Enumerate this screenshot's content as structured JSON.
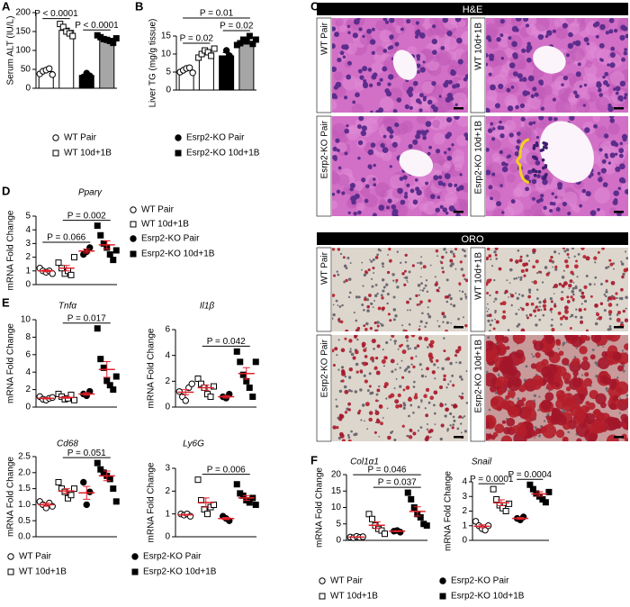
{
  "chart_data": [
    {
      "type": "bar",
      "panel": "A",
      "ylabel": "Serum ALT (IU/L)",
      "ylim": [
        0,
        200
      ],
      "yticks": [
        0,
        50,
        100,
        150,
        200
      ],
      "error_color": "#000000",
      "series": [
        {
          "name": "WT Pair",
          "marker": "circle",
          "filled": false,
          "bar_color": "#ffffff",
          "values": [
            38,
            45,
            48,
            52,
            36
          ],
          "mean": 44,
          "sem": 3
        },
        {
          "name": "WT 10d+1B",
          "marker": "square",
          "filled": false,
          "bar_color": "#ffffff",
          "values": [
            170,
            162,
            150,
            145,
            138
          ],
          "mean": 153,
          "sem": 6
        },
        {
          "name": "Esrp2-KO Pair",
          "marker": "circle",
          "filled": true,
          "bar_color": "#000000",
          "values": [
            30,
            40,
            33
          ],
          "mean": 34,
          "sem": 3
        },
        {
          "name": "Esrp2-KO 10d+1B",
          "marker": "square",
          "filled": true,
          "bar_color": "#a6a6a6",
          "values": [
            140,
            135,
            130,
            128,
            125,
            120,
            132
          ],
          "mean": 130,
          "sem": 3
        }
      ],
      "annotations": [
        {
          "label": "P < 0.0001",
          "between": [
            0,
            1
          ]
        },
        {
          "label": "P < 0.0001",
          "between": [
            2,
            3
          ]
        }
      ]
    },
    {
      "type": "bar",
      "panel": "B",
      "ylabel": "Liver TG (mg/g tissue)",
      "ylim": [
        0,
        15
      ],
      "yticks": [
        0,
        5,
        10,
        15
      ],
      "error_color": "#000000",
      "series": [
        {
          "name": "WT Pair",
          "marker": "circle",
          "filled": false,
          "bar_color": "#ffffff",
          "values": [
            5,
            5.5,
            6,
            6.2,
            4.8
          ],
          "mean": 5.5,
          "sem": 0.3
        },
        {
          "name": "WT 10d+1B",
          "marker": "square",
          "filled": false,
          "bar_color": "#ffffff",
          "values": [
            9,
            10,
            11,
            10.5,
            9.5,
            11.5
          ],
          "mean": 10.3,
          "sem": 0.4
        },
        {
          "name": "Esrp2-KO Pair",
          "marker": "circle",
          "filled": true,
          "bar_color": "#000000",
          "values": [
            8,
            11,
            9.5
          ],
          "mean": 9.5,
          "sem": 0.9
        },
        {
          "name": "Esrp2-KO 10d+1B",
          "marker": "square",
          "filled": true,
          "bar_color": "#a6a6a6",
          "values": [
            12.5,
            13,
            14,
            13.5,
            15,
            12.8,
            14
          ],
          "mean": 13.5,
          "sem": 0.4
        }
      ],
      "annotations": [
        {
          "label": "P = 0.02",
          "between": [
            0,
            1
          ]
        },
        {
          "label": "P = 0.02",
          "between": [
            2,
            3
          ]
        },
        {
          "label": "P = 0.01",
          "between": [
            0,
            3
          ]
        }
      ]
    },
    {
      "type": "dot",
      "panel": "D",
      "title": "Pparγ",
      "ylabel": "mRNA Fold Change",
      "ylim": [
        0,
        5
      ],
      "yticks": [
        0,
        1,
        2,
        3,
        4,
        5
      ],
      "mean_color": "#e0202a",
      "series": [
        {
          "name": "WT Pair",
          "marker": "circle",
          "filled": false,
          "values": [
            1.2,
            1.0,
            0.9,
            1.0,
            0.8
          ],
          "mean": 1.0,
          "sem": 0.07
        },
        {
          "name": "WT 10d+1B",
          "marker": "square",
          "filled": false,
          "values": [
            1.6,
            1.2,
            0.8,
            1.0,
            0.7,
            2.0
          ],
          "mean": 1.2,
          "sem": 0.2
        },
        {
          "name": "Esrp2-KO Pair",
          "marker": "circle",
          "filled": true,
          "values": [
            2.2,
            2.4,
            2.7
          ],
          "mean": 2.45,
          "sem": 0.15
        },
        {
          "name": "Esrp2-KO 10d+1B",
          "marker": "square",
          "filled": true,
          "values": [
            4.3,
            3.6,
            3.0,
            2.7,
            2.2,
            1.8,
            2.5
          ],
          "mean": 2.9,
          "sem": 0.3
        }
      ],
      "annotations": [
        {
          "label": "P = 0.066",
          "between": [
            0,
            2
          ]
        },
        {
          "label": "P = 0.002",
          "between": [
            1,
            3
          ]
        }
      ]
    },
    {
      "type": "dot",
      "panel": "E",
      "title": "Tnfα",
      "ylabel": "mRNA Fold Change",
      "ylim": [
        0,
        10
      ],
      "yticks": [
        0,
        2,
        4,
        6,
        8,
        10
      ],
      "mean_color": "#e0202a",
      "series": [
        {
          "name": "WT Pair",
          "marker": "circle",
          "filled": false,
          "values": [
            1.2,
            0.9,
            0.8,
            1.0,
            1.1
          ],
          "mean": 1.0,
          "sem": 0.07
        },
        {
          "name": "WT 10d+1B",
          "marker": "square",
          "filled": false,
          "values": [
            1.5,
            1.2,
            0.9,
            1.0,
            1.4,
            0.8
          ],
          "mean": 1.1,
          "sem": 0.1
        },
        {
          "name": "Esrp2-KO Pair",
          "marker": "circle",
          "filled": true,
          "values": [
            1.5,
            1.3,
            1.8
          ],
          "mean": 1.5,
          "sem": 0.15
        },
        {
          "name": "Esrp2-KO 10d+1B",
          "marker": "square",
          "filled": true,
          "values": [
            9.0,
            5.5,
            4.5,
            3.0,
            2.5,
            2.0,
            3.5
          ],
          "mean": 4.3,
          "sem": 0.9
        }
      ],
      "annotations": [
        {
          "label": "P = 0.017",
          "between": [
            1,
            3
          ]
        }
      ]
    },
    {
      "type": "dot",
      "title": "Il1β",
      "ylabel": "mRNA Fold Change",
      "ylim": [
        0,
        6
      ],
      "yticks": [
        0,
        2,
        4,
        6
      ],
      "mean_color": "#e0202a",
      "series": [
        {
          "name": "WT Pair",
          "marker": "circle",
          "filled": false,
          "values": [
            1.2,
            0.8,
            0.5,
            1.5,
            1.8
          ],
          "mean": 1.15,
          "sem": 0.2
        },
        {
          "name": "WT 10d+1B",
          "marker": "square",
          "filled": false,
          "values": [
            2.2,
            1.8,
            1.5,
            1.0,
            0.8,
            1.6
          ],
          "mean": 1.5,
          "sem": 0.2
        },
        {
          "name": "Esrp2-KO Pair",
          "marker": "circle",
          "filled": true,
          "values": [
            0.8,
            0.7,
            1.0
          ],
          "mean": 0.8,
          "sem": 0.1
        },
        {
          "name": "Esrp2-KO 10d+1B",
          "marker": "square",
          "filled": true,
          "values": [
            4.3,
            3.5,
            2.5,
            2.0,
            1.5,
            0.8,
            3.5
          ],
          "mean": 2.6,
          "sem": 0.45
        }
      ],
      "annotations": [
        {
          "label": "P = 0.042",
          "between": [
            1,
            3
          ]
        }
      ]
    },
    {
      "type": "dot",
      "title": "Cd68",
      "ylabel": "mRNA Fold Change",
      "ylim": [
        0,
        2.5
      ],
      "yticks": [
        {
          "value": 0,
          "label": "0.0"
        },
        0.5,
        {
          "value": 1,
          "label": "1.0"
        },
        1.5,
        {
          "value": 2,
          "label": "2.0"
        },
        2.5
      ],
      "mean_color": "#e0202a",
      "series": [
        {
          "name": "WT Pair",
          "marker": "circle",
          "filled": false,
          "values": [
            1.1,
            1.0,
            0.9,
            1.05,
            0.95
          ],
          "mean": 1.0,
          "sem": 0.05
        },
        {
          "name": "WT 10d+1B",
          "marker": "square",
          "filled": false,
          "values": [
            1.7,
            1.5,
            1.4,
            1.2,
            1.3,
            1.5
          ],
          "mean": 1.43,
          "sem": 0.07
        },
        {
          "name": "Esrp2-KO Pair",
          "marker": "circle",
          "filled": true,
          "values": [
            1.7,
            1.0,
            1.4
          ],
          "mean": 1.37,
          "sem": 0.2
        },
        {
          "name": "Esrp2-KO 10d+1B",
          "marker": "square",
          "filled": true,
          "values": [
            2.3,
            2.1,
            2.0,
            1.9,
            1.8,
            1.5,
            1.1
          ],
          "mean": 1.9,
          "sem": 0.15
        }
      ],
      "annotations": [
        {
          "label": "P = 0.051",
          "between": [
            1,
            3
          ]
        }
      ]
    },
    {
      "type": "dot",
      "title": "Ly6G",
      "ylabel": "mRNA Fold Change",
      "ylim": [
        0,
        3
      ],
      "yticks": [
        0,
        1,
        2,
        3
      ],
      "mean_color": "#e0202a",
      "series": [
        {
          "name": "WT Pair",
          "marker": "circle",
          "filled": false,
          "values": [
            1.0,
            0.95,
            1.0,
            0.9
          ],
          "mean": 0.96,
          "sem": 0.02
        },
        {
          "name": "WT 10d+1B",
          "marker": "square",
          "filled": false,
          "values": [
            2.5,
            1.6,
            1.2,
            1.0,
            1.3,
            1.4
          ],
          "mean": 1.5,
          "sem": 0.2
        },
        {
          "name": "Esrp2-KO Pair",
          "marker": "circle",
          "filled": true,
          "values": [
            0.9,
            0.8,
            0.7
          ],
          "mean": 0.8,
          "sem": 0.05
        },
        {
          "name": "Esrp2-KO 10d+1B",
          "marker": "square",
          "filled": true,
          "values": [
            2.3,
            1.9,
            1.8,
            1.6,
            1.5,
            1.7,
            1.4
          ],
          "mean": 1.7,
          "sem": 0.1
        }
      ],
      "annotations": [
        {
          "label": "P = 0.006",
          "between": [
            1,
            3
          ]
        }
      ]
    },
    {
      "type": "dot",
      "panel": "F",
      "title": "Col1α1",
      "ylabel": "mRNA Fold Change",
      "ylim": [
        0,
        20
      ],
      "yticks": [
        0,
        5,
        10,
        15,
        20
      ],
      "mean_color": "#e0202a",
      "series": [
        {
          "name": "WT Pair",
          "marker": "circle",
          "filled": false,
          "values": [
            1.0,
            0.8,
            1.2,
            0.9,
            1.1
          ],
          "mean": 1.0,
          "sem": 0.07
        },
        {
          "name": "WT 10d+1B",
          "marker": "square",
          "filled": false,
          "values": [
            8.0,
            6.5,
            4.5,
            3.5,
            3.0,
            2.0
          ],
          "mean": 4.6,
          "sem": 1.0
        },
        {
          "name": "Esrp2-KO Pair",
          "marker": "circle",
          "filled": true,
          "values": [
            2.8,
            3.0,
            2.5
          ],
          "mean": 2.8,
          "sem": 0.15
        },
        {
          "name": "Esrp2-KO 10d+1B",
          "marker": "square",
          "filled": true,
          "values": [
            14.5,
            12.5,
            10,
            8,
            7,
            5,
            4.5
          ],
          "mean": 8.8,
          "sem": 1.4
        }
      ],
      "annotations": [
        {
          "label": "P = 0.037",
          "between": [
            1,
            3
          ]
        },
        {
          "label": "P = 0.046",
          "between": [
            0,
            3
          ]
        }
      ]
    },
    {
      "type": "dot",
      "title": "Snail",
      "ylabel": "mRNA Fold Change",
      "ylim": [
        0,
        4
      ],
      "yticks": [
        0,
        1,
        2,
        3,
        4
      ],
      "mean_color": "#e0202a",
      "series": [
        {
          "name": "WT Pair",
          "marker": "circle",
          "filled": false,
          "values": [
            1.3,
            1.0,
            0.8,
            0.7,
            1.0
          ],
          "mean": 0.96,
          "sem": 0.1
        },
        {
          "name": "WT 10d+1B",
          "marker": "square",
          "filled": false,
          "values": [
            3.5,
            2.8,
            2.4,
            2.2,
            2.0,
            2.5
          ],
          "mean": 2.57,
          "sem": 0.2
        },
        {
          "name": "Esrp2-KO Pair",
          "marker": "circle",
          "filled": true,
          "values": [
            1.5,
            1.4,
            1.6
          ],
          "mean": 1.5,
          "sem": 0.06
        },
        {
          "name": "Esrp2-KO 10d+1B",
          "marker": "square",
          "filled": true,
          "values": [
            3.8,
            3.5,
            3.2,
            3.0,
            2.8,
            2.6,
            3.3
          ],
          "mean": 3.17,
          "sem": 0.15
        }
      ],
      "annotations": [
        {
          "label": "P = 0.0001",
          "between": [
            0,
            1
          ]
        },
        {
          "label": "P = 0.0004",
          "between": [
            2,
            3
          ]
        }
      ]
    }
  ],
  "histology": {
    "panel": "C",
    "sections": [
      {
        "title": "H&E",
        "labels": [
          "WT Pair",
          "WT 10d+1B",
          "Esrp2-KO Pair",
          "Esrp2-KO 10d+1B"
        ]
      },
      {
        "title": "ORO",
        "labels": [
          "WT Pair",
          "WT 10d+1B",
          "Esrp2-KO Pair",
          "Esrp2-KO 10d+1B"
        ]
      }
    ]
  }
}
